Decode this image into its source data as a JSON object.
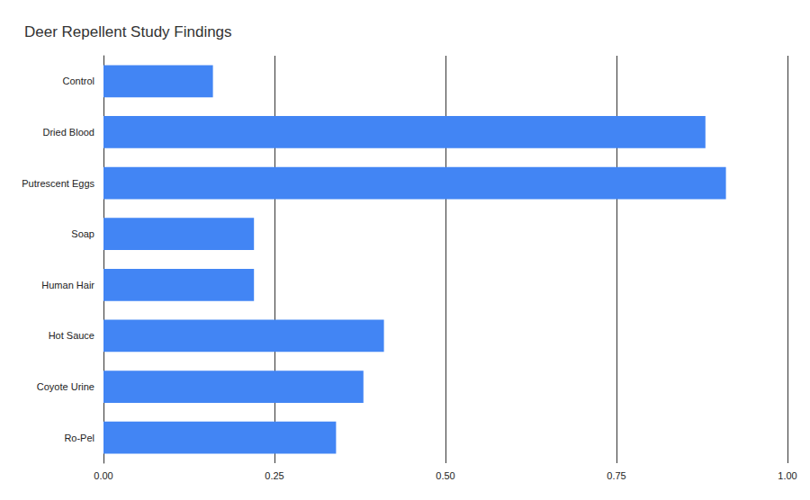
{
  "chart_data": {
    "type": "bar",
    "title": "Deer Repellent Study Findings",
    "orientation": "horizontal",
    "categories": [
      "Control",
      "Dried Blood",
      "Putrescent Eggs",
      "Soap",
      "Human Hair",
      "Hot Sauce",
      "Coyote Urine",
      "Ro-Pel"
    ],
    "values": [
      0.16,
      0.88,
      0.91,
      0.22,
      0.22,
      0.41,
      0.38,
      0.34
    ],
    "color": "#4285f4",
    "xlim": [
      0,
      1
    ],
    "xticks": [
      {
        "value": 0,
        "label": "0.00"
      },
      0.25,
      {
        "value": 0.5,
        "label": "0.50"
      },
      0.75,
      {
        "value": 1,
        "label": "1.00"
      }
    ],
    "grid": true
  }
}
